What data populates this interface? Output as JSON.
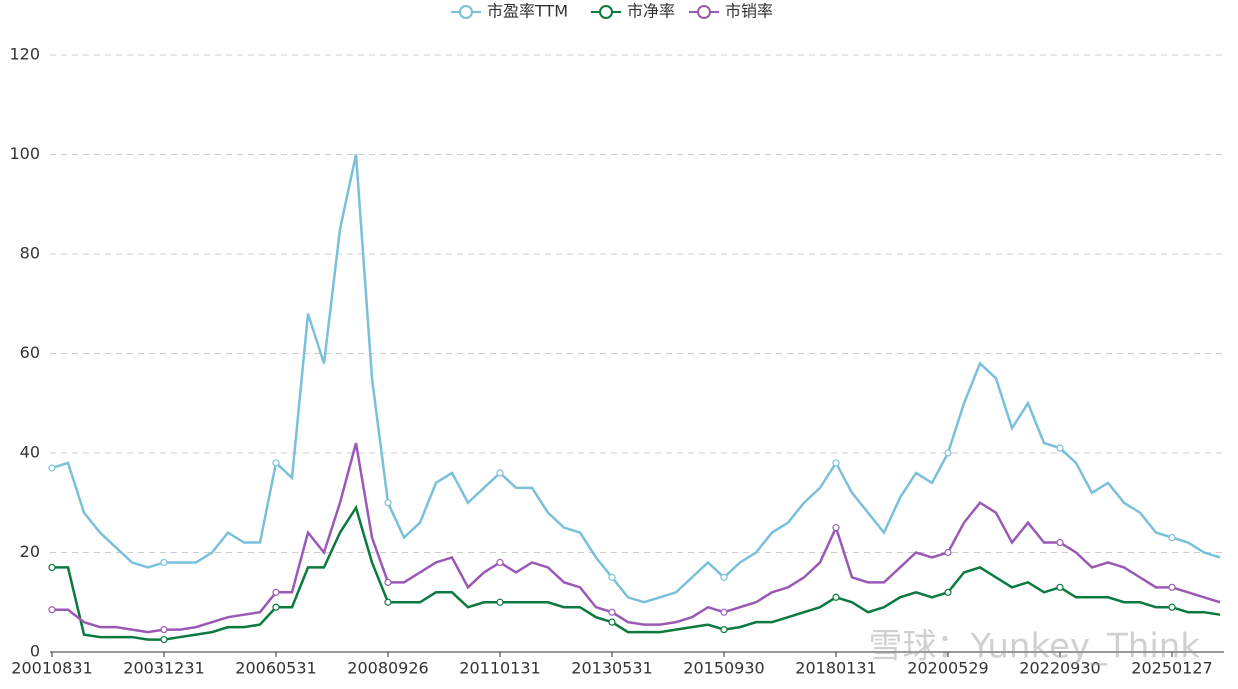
{
  "chart_data": {
    "type": "line",
    "categories": [
      "20010831",
      null,
      null,
      null,
      null,
      null,
      null,
      "20031231",
      null,
      null,
      null,
      null,
      null,
      null,
      "20060531",
      null,
      null,
      null,
      null,
      null,
      null,
      "20080926",
      null,
      null,
      null,
      null,
      null,
      null,
      "20110131",
      null,
      null,
      null,
      null,
      null,
      null,
      "20130531",
      null,
      null,
      null,
      null,
      null,
      null,
      "20150930",
      null,
      null,
      null,
      null,
      null,
      null,
      "20180131",
      null,
      null,
      null,
      null,
      null,
      null,
      "20200529",
      null,
      null,
      null,
      null,
      null,
      null,
      "20220930",
      null,
      null,
      null,
      null,
      null,
      null,
      "20250127",
      null,
      null,
      null
    ],
    "series": [
      {
        "name": "市盈率TTM",
        "color": "#7ac0db",
        "values": [
          37,
          38,
          28,
          24,
          21,
          18,
          17,
          18,
          18,
          18,
          20,
          24,
          22,
          22,
          38,
          35,
          68,
          58,
          85,
          100,
          55,
          30,
          23,
          26,
          34,
          36,
          30,
          33,
          36,
          33,
          33,
          28,
          25,
          24,
          19,
          15,
          11,
          10,
          11,
          12,
          15,
          18,
          15,
          18,
          20,
          24,
          26,
          30,
          33,
          38,
          32,
          28,
          24,
          31,
          36,
          34,
          40,
          50,
          58,
          55,
          45,
          50,
          42,
          41,
          38,
          32,
          34,
          30,
          28,
          24,
          23,
          22,
          20,
          19
        ]
      },
      {
        "name": "市净率",
        "color": "#0a7a3f",
        "values": [
          17,
          17,
          3.5,
          3,
          3,
          3,
          2.5,
          2.5,
          3,
          3.5,
          4,
          5,
          5,
          5.5,
          9,
          9,
          17,
          17,
          24,
          29,
          18,
          10,
          10,
          10,
          12,
          12,
          9,
          10,
          10,
          10,
          10,
          10,
          9,
          9,
          7,
          6,
          4,
          4,
          4,
          4.5,
          5,
          5.5,
          4.5,
          5,
          6,
          6,
          7,
          8,
          9,
          11,
          10,
          8,
          9,
          11,
          12,
          11,
          12,
          16,
          17,
          15,
          13,
          14,
          12,
          13,
          11,
          11,
          11,
          10,
          10,
          9,
          9,
          8,
          8,
          7.5
        ]
      },
      {
        "name": "市销率",
        "color": "#9b59b6",
        "values": [
          8.5,
          8.5,
          6,
          5,
          5,
          4.5,
          4,
          4.5,
          4.5,
          5,
          6,
          7,
          7.5,
          8,
          12,
          12,
          24,
          20,
          30,
          42,
          23,
          14,
          14,
          16,
          18,
          19,
          13,
          16,
          18,
          16,
          18,
          17,
          14,
          13,
          9,
          8,
          6,
          5.5,
          5.5,
          6,
          7,
          9,
          8,
          9,
          10,
          12,
          13,
          15,
          18,
          25,
          15,
          14,
          14,
          17,
          20,
          19,
          20,
          26,
          30,
          28,
          22,
          26,
          22,
          22,
          20,
          17,
          18,
          17,
          15,
          13,
          13,
          12,
          11,
          10
        ]
      }
    ],
    "ylim": [
      0,
      120
    ],
    "yticks": [
      0,
      20,
      40,
      60,
      80,
      100,
      120
    ],
    "grid": true,
    "legend": "top",
    "watermark": "雪球：Yunkey_Think"
  }
}
